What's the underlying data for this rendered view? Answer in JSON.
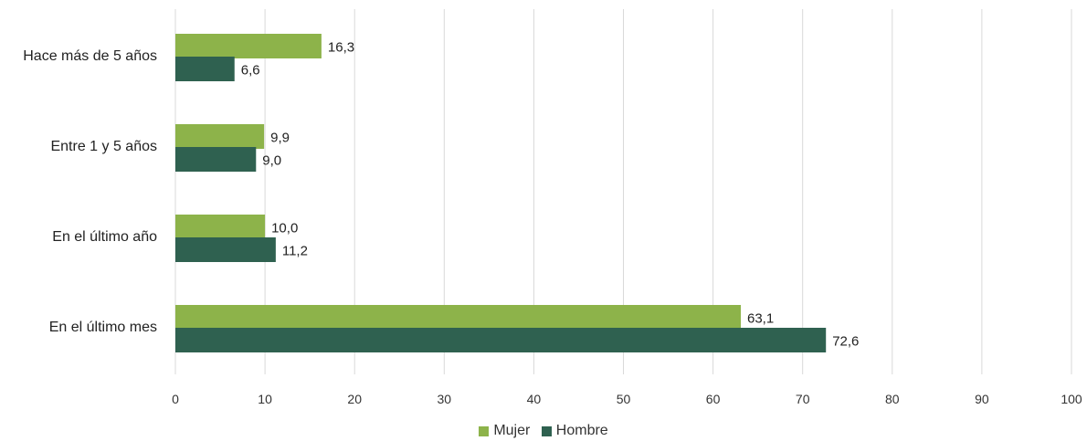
{
  "chart_data": {
    "type": "bar",
    "orientation": "horizontal",
    "categories": [
      "Hace más de 5 años",
      "Entre 1 y 5 años",
      "En el último año",
      "En el último mes"
    ],
    "series": [
      {
        "name": "Mujer",
        "values": [
          16.3,
          9.9,
          10.0,
          63.1
        ],
        "labels": [
          "16,3",
          "9,9",
          "10,0",
          "63,1"
        ],
        "color": "#8db34a"
      },
      {
        "name": "Hombre",
        "values": [
          6.6,
          9.0,
          11.2,
          72.6
        ],
        "labels": [
          "6,6",
          "9,0",
          "11,2",
          "72,6"
        ],
        "color": "#2f6150"
      }
    ],
    "xlim": [
      0,
      100
    ],
    "ticks": [
      "0",
      "10",
      "20",
      "30",
      "40",
      "50",
      "60",
      "70",
      "80",
      "90",
      "100"
    ],
    "grid": true,
    "gridColor": "#d9d9d9",
    "legend_position": "bottom"
  }
}
